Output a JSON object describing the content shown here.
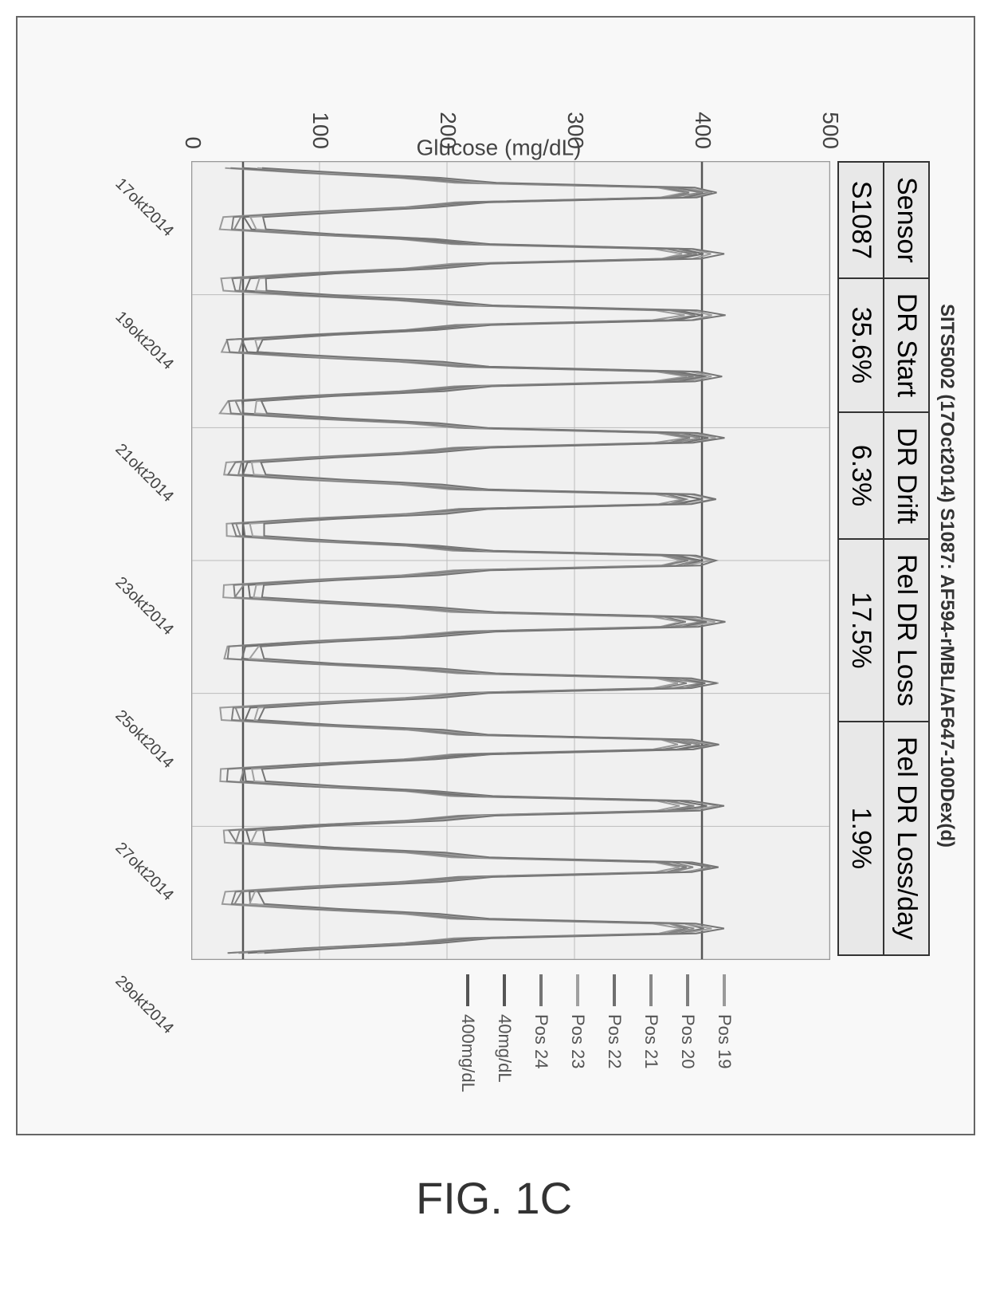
{
  "figure": {
    "label": "FIG. 1C",
    "title": "SITS5002 (17Oct2014) S1087: AF594-rMBL/AF647-100Dex(d)",
    "ylabel": "Glucose (mg/dL)",
    "ylim": [
      0,
      500
    ],
    "ytick_step": 100,
    "y_ticks": [
      0,
      100,
      200,
      300,
      400,
      500
    ],
    "x_ticks": [
      "17okt2014",
      "19okt2014",
      "21okt2014",
      "23okt2014",
      "25okt2014",
      "27okt2014",
      "29okt2014"
    ],
    "background_color": "#f8f8f8",
    "grid_color": "#bbbbbb",
    "plot_bg": "#f0f0f0",
    "border_color": "#333333"
  },
  "metrics_table": {
    "headers": [
      "Sensor",
      "DR Start",
      "DR Drift",
      "Rel DR Loss",
      "Rel DR Loss/day"
    ],
    "row": [
      "S1087",
      "35.6%",
      "6.3%",
      "17.5%",
      "1.9%"
    ]
  },
  "legend": {
    "items": [
      {
        "label": "Pos 19",
        "color": "#9a9a9a"
      },
      {
        "label": "Pos 20",
        "color": "#7e7e7e"
      },
      {
        "label": "Pos 21",
        "color": "#888888"
      },
      {
        "label": "Pos 22",
        "color": "#6f6f6f"
      },
      {
        "label": "Pos 23",
        "color": "#a0a0a0"
      },
      {
        "label": "Pos 24",
        "color": "#757575"
      },
      {
        "label": "40mg/dL",
        "color": "#555555"
      },
      {
        "label": "400mg/dL",
        "color": "#555555"
      }
    ]
  },
  "series": {
    "type": "line",
    "description": "time-series glucose traces with repeated step-cycle profiles oscillating roughly between 40 and 400 mg/dL",
    "count_cycles": 13,
    "ref_lines": {
      "low": 40,
      "high": 400
    },
    "traces": [
      {
        "name": "Pos 19",
        "color": "#9a9a9a"
      },
      {
        "name": "Pos 20",
        "color": "#7e7e7e"
      },
      {
        "name": "Pos 21",
        "color": "#888888"
      },
      {
        "name": "Pos 22",
        "color": "#6f6f6f"
      },
      {
        "name": "Pos 23",
        "color": "#a0a0a0"
      },
      {
        "name": "Pos 24",
        "color": "#757575"
      }
    ]
  },
  "typography": {
    "title_fontsize": 24,
    "table_fontsize": 34,
    "axis_tick_fontsize": 28,
    "x_tick_fontsize": 20,
    "legend_fontsize": 22,
    "figure_label_fontsize": 56,
    "font_family": "Arial, sans-serif"
  }
}
